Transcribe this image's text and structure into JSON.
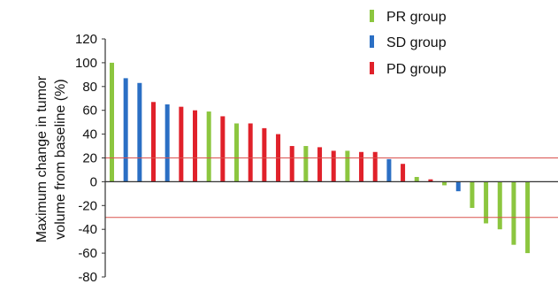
{
  "chart_data": {
    "type": "bar",
    "ylabel_lines": [
      "Maximum  change in tumor",
      "volume from baseline (%)"
    ],
    "ylim": [
      -80,
      120
    ],
    "yticks": [
      120,
      100,
      80,
      60,
      40,
      20,
      0,
      -20,
      -40,
      -60,
      -80
    ],
    "reference_lines": [
      20,
      -30
    ],
    "grid": false,
    "legend_position": "top-right",
    "groups": [
      {
        "name": "PR group",
        "color": "#8cc63f"
      },
      {
        "name": "SD group",
        "color": "#2b6fc4"
      },
      {
        "name": "PD group",
        "color": "#e0212a"
      }
    ],
    "bars": [
      {
        "group": "PR group",
        "value": 100
      },
      {
        "group": "SD group",
        "value": 87
      },
      {
        "group": "SD group",
        "value": 83
      },
      {
        "group": "PD group",
        "value": 67
      },
      {
        "group": "SD group",
        "value": 65
      },
      {
        "group": "PD group",
        "value": 63
      },
      {
        "group": "PD group",
        "value": 60
      },
      {
        "group": "PR group",
        "value": 59
      },
      {
        "group": "PD group",
        "value": 55
      },
      {
        "group": "PR group",
        "value": 49
      },
      {
        "group": "PD group",
        "value": 49
      },
      {
        "group": "PD group",
        "value": 45
      },
      {
        "group": "PD group",
        "value": 40
      },
      {
        "group": "PD group",
        "value": 30
      },
      {
        "group": "PR group",
        "value": 30
      },
      {
        "group": "PD group",
        "value": 29
      },
      {
        "group": "PD group",
        "value": 26
      },
      {
        "group": "PR group",
        "value": 26
      },
      {
        "group": "PD group",
        "value": 25
      },
      {
        "group": "PD group",
        "value": 25
      },
      {
        "group": "SD group",
        "value": 19
      },
      {
        "group": "PD group",
        "value": 15
      },
      {
        "group": "PR group",
        "value": 4
      },
      {
        "group": "PD group",
        "value": 2
      },
      {
        "group": "PR group",
        "value": -3
      },
      {
        "group": "SD group",
        "value": -8
      },
      {
        "group": "PR group",
        "value": -22
      },
      {
        "group": "PR group",
        "value": -35
      },
      {
        "group": "PR group",
        "value": -40
      },
      {
        "group": "PR group",
        "value": -53
      },
      {
        "group": "PR group",
        "value": -60
      }
    ]
  }
}
